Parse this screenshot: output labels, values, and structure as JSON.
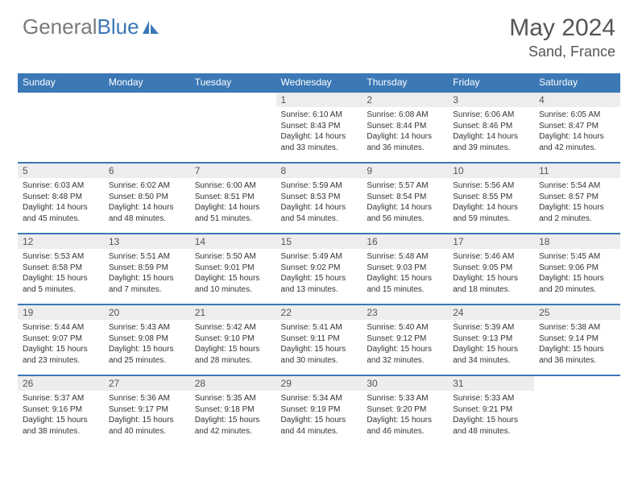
{
  "brand": {
    "part1": "General",
    "part2": "Blue"
  },
  "title": "May 2024",
  "location": "Sand, France",
  "colors": {
    "header_bg": "#3b78b5",
    "header_text": "#ffffff",
    "daynum_bg": "#ededed",
    "border": "#3b78b5",
    "body_text": "#333333",
    "title_text": "#555555",
    "logo_gray": "#7a7a7a",
    "logo_blue": "#3b78b5",
    "page_bg": "#ffffff"
  },
  "typography": {
    "month_title_size_pt": 22,
    "location_size_pt": 13,
    "weekday_size_pt": 9,
    "daynum_size_pt": 9,
    "body_size_pt": 7.5
  },
  "calendar": {
    "weekdays": [
      "Sunday",
      "Monday",
      "Tuesday",
      "Wednesday",
      "Thursday",
      "Friday",
      "Saturday"
    ],
    "first_weekday_index": 3,
    "days": [
      {
        "n": 1,
        "sunrise": "6:10 AM",
        "sunset": "8:43 PM",
        "daylight": "14 hours and 33 minutes."
      },
      {
        "n": 2,
        "sunrise": "6:08 AM",
        "sunset": "8:44 PM",
        "daylight": "14 hours and 36 minutes."
      },
      {
        "n": 3,
        "sunrise": "6:06 AM",
        "sunset": "8:46 PM",
        "daylight": "14 hours and 39 minutes."
      },
      {
        "n": 4,
        "sunrise": "6:05 AM",
        "sunset": "8:47 PM",
        "daylight": "14 hours and 42 minutes."
      },
      {
        "n": 5,
        "sunrise": "6:03 AM",
        "sunset": "8:48 PM",
        "daylight": "14 hours and 45 minutes."
      },
      {
        "n": 6,
        "sunrise": "6:02 AM",
        "sunset": "8:50 PM",
        "daylight": "14 hours and 48 minutes."
      },
      {
        "n": 7,
        "sunrise": "6:00 AM",
        "sunset": "8:51 PM",
        "daylight": "14 hours and 51 minutes."
      },
      {
        "n": 8,
        "sunrise": "5:59 AM",
        "sunset": "8:53 PM",
        "daylight": "14 hours and 54 minutes."
      },
      {
        "n": 9,
        "sunrise": "5:57 AM",
        "sunset": "8:54 PM",
        "daylight": "14 hours and 56 minutes."
      },
      {
        "n": 10,
        "sunrise": "5:56 AM",
        "sunset": "8:55 PM",
        "daylight": "14 hours and 59 minutes."
      },
      {
        "n": 11,
        "sunrise": "5:54 AM",
        "sunset": "8:57 PM",
        "daylight": "15 hours and 2 minutes."
      },
      {
        "n": 12,
        "sunrise": "5:53 AM",
        "sunset": "8:58 PM",
        "daylight": "15 hours and 5 minutes."
      },
      {
        "n": 13,
        "sunrise": "5:51 AM",
        "sunset": "8:59 PM",
        "daylight": "15 hours and 7 minutes."
      },
      {
        "n": 14,
        "sunrise": "5:50 AM",
        "sunset": "9:01 PM",
        "daylight": "15 hours and 10 minutes."
      },
      {
        "n": 15,
        "sunrise": "5:49 AM",
        "sunset": "9:02 PM",
        "daylight": "15 hours and 13 minutes."
      },
      {
        "n": 16,
        "sunrise": "5:48 AM",
        "sunset": "9:03 PM",
        "daylight": "15 hours and 15 minutes."
      },
      {
        "n": 17,
        "sunrise": "5:46 AM",
        "sunset": "9:05 PM",
        "daylight": "15 hours and 18 minutes."
      },
      {
        "n": 18,
        "sunrise": "5:45 AM",
        "sunset": "9:06 PM",
        "daylight": "15 hours and 20 minutes."
      },
      {
        "n": 19,
        "sunrise": "5:44 AM",
        "sunset": "9:07 PM",
        "daylight": "15 hours and 23 minutes."
      },
      {
        "n": 20,
        "sunrise": "5:43 AM",
        "sunset": "9:08 PM",
        "daylight": "15 hours and 25 minutes."
      },
      {
        "n": 21,
        "sunrise": "5:42 AM",
        "sunset": "9:10 PM",
        "daylight": "15 hours and 28 minutes."
      },
      {
        "n": 22,
        "sunrise": "5:41 AM",
        "sunset": "9:11 PM",
        "daylight": "15 hours and 30 minutes."
      },
      {
        "n": 23,
        "sunrise": "5:40 AM",
        "sunset": "9:12 PM",
        "daylight": "15 hours and 32 minutes."
      },
      {
        "n": 24,
        "sunrise": "5:39 AM",
        "sunset": "9:13 PM",
        "daylight": "15 hours and 34 minutes."
      },
      {
        "n": 25,
        "sunrise": "5:38 AM",
        "sunset": "9:14 PM",
        "daylight": "15 hours and 36 minutes."
      },
      {
        "n": 26,
        "sunrise": "5:37 AM",
        "sunset": "9:16 PM",
        "daylight": "15 hours and 38 minutes."
      },
      {
        "n": 27,
        "sunrise": "5:36 AM",
        "sunset": "9:17 PM",
        "daylight": "15 hours and 40 minutes."
      },
      {
        "n": 28,
        "sunrise": "5:35 AM",
        "sunset": "9:18 PM",
        "daylight": "15 hours and 42 minutes."
      },
      {
        "n": 29,
        "sunrise": "5:34 AM",
        "sunset": "9:19 PM",
        "daylight": "15 hours and 44 minutes."
      },
      {
        "n": 30,
        "sunrise": "5:33 AM",
        "sunset": "9:20 PM",
        "daylight": "15 hours and 46 minutes."
      },
      {
        "n": 31,
        "sunrise": "5:33 AM",
        "sunset": "9:21 PM",
        "daylight": "15 hours and 48 minutes."
      }
    ],
    "labels": {
      "sunrise": "Sunrise:",
      "sunset": "Sunset:",
      "daylight": "Daylight:"
    }
  }
}
